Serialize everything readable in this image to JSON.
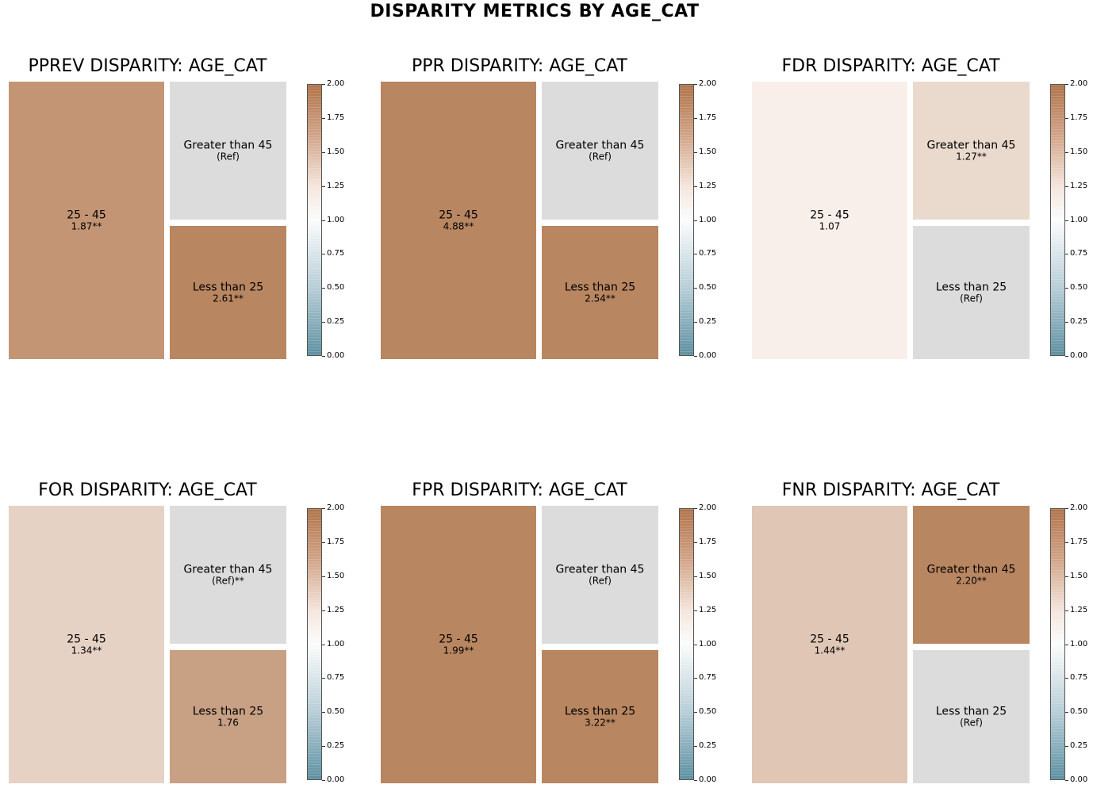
{
  "suptitle": "DISPARITY METRICS BY AGE_CAT",
  "chart_data": [
    {
      "type": "treemap",
      "title": "PPREV DISPARITY: AGE_CAT",
      "colorbar": {
        "range": [
          0,
          2
        ],
        "ticks": [
          "0.00",
          "0.25",
          "0.50",
          "0.75",
          "1.00",
          "1.25",
          "1.50",
          "1.75",
          "2.00"
        ]
      },
      "tiles": [
        {
          "label": "25 - 45",
          "value": "1.87**",
          "color": "#c39574"
        },
        {
          "label": "Greater than 45",
          "value": "(Ref)",
          "color": "#dcdcdc"
        },
        {
          "label": "Less than 25",
          "value": "2.61**",
          "color": "#b88661"
        }
      ]
    },
    {
      "type": "treemap",
      "title": "PPR DISPARITY: AGE_CAT",
      "colorbar": {
        "range": [
          0,
          2
        ],
        "ticks": [
          "0.00",
          "0.25",
          "0.50",
          "0.75",
          "1.00",
          "1.25",
          "1.50",
          "1.75",
          "2.00"
        ]
      },
      "tiles": [
        {
          "label": "25 - 45",
          "value": "4.88**",
          "color": "#b88661"
        },
        {
          "label": "Greater than 45",
          "value": "(Ref)",
          "color": "#dcdcdc"
        },
        {
          "label": "Less than 25",
          "value": "2.54**",
          "color": "#b88661"
        }
      ]
    },
    {
      "type": "treemap",
      "title": "FDR DISPARITY: AGE_CAT",
      "colorbar": {
        "range": [
          0,
          2
        ],
        "ticks": [
          "0.00",
          "0.25",
          "0.50",
          "0.75",
          "1.00",
          "1.25",
          "1.50",
          "1.75",
          "2.00"
        ]
      },
      "tiles": [
        {
          "label": "25 - 45",
          "value": "1.07",
          "color": "#f8efeb"
        },
        {
          "label": "Greater than 45",
          "value": "1.27**",
          "color": "#e9dacd"
        },
        {
          "label": "Less than 25",
          "value": "(Ref)",
          "color": "#dcdcdc"
        }
      ]
    },
    {
      "type": "treemap",
      "title": "FOR DISPARITY: AGE_CAT",
      "colorbar": {
        "range": [
          0,
          2
        ],
        "ticks": [
          "0.00",
          "0.25",
          "0.50",
          "0.75",
          "1.00",
          "1.25",
          "1.50",
          "1.75",
          "2.00"
        ]
      },
      "tiles": [
        {
          "label": "25 - 45",
          "value": "1.34**",
          "color": "#e6d1c5"
        },
        {
          "label": "Greater than 45",
          "value": "(Ref)**",
          "color": "#dcdcdc"
        },
        {
          "label": "Less than 25",
          "value": "1.76",
          "color": "#c8a084"
        }
      ]
    },
    {
      "type": "treemap",
      "title": "FPR DISPARITY: AGE_CAT",
      "colorbar": {
        "range": [
          0,
          2
        ],
        "ticks": [
          "0.00",
          "0.25",
          "0.50",
          "0.75",
          "1.00",
          "1.25",
          "1.50",
          "1.75",
          "2.00"
        ]
      },
      "tiles": [
        {
          "label": "25 - 45",
          "value": "1.99**",
          "color": "#b88661"
        },
        {
          "label": "Greater than 45",
          "value": "(Ref)",
          "color": "#dcdcdc"
        },
        {
          "label": "Less than 25",
          "value": "3.22**",
          "color": "#b88661"
        }
      ]
    },
    {
      "type": "treemap",
      "title": "FNR DISPARITY: AGE_CAT",
      "colorbar": {
        "range": [
          0,
          2
        ],
        "ticks": [
          "0.00",
          "0.25",
          "0.50",
          "0.75",
          "1.00",
          "1.25",
          "1.50",
          "1.75",
          "2.00"
        ]
      },
      "tiles": [
        {
          "label": "25 - 45",
          "value": "1.44**",
          "color": "#e0c6b5"
        },
        {
          "label": "Greater than 45",
          "value": "2.20**",
          "color": "#b88661"
        },
        {
          "label": "Less than 25",
          "value": "(Ref)",
          "color": "#dcdcdc"
        }
      ]
    }
  ]
}
